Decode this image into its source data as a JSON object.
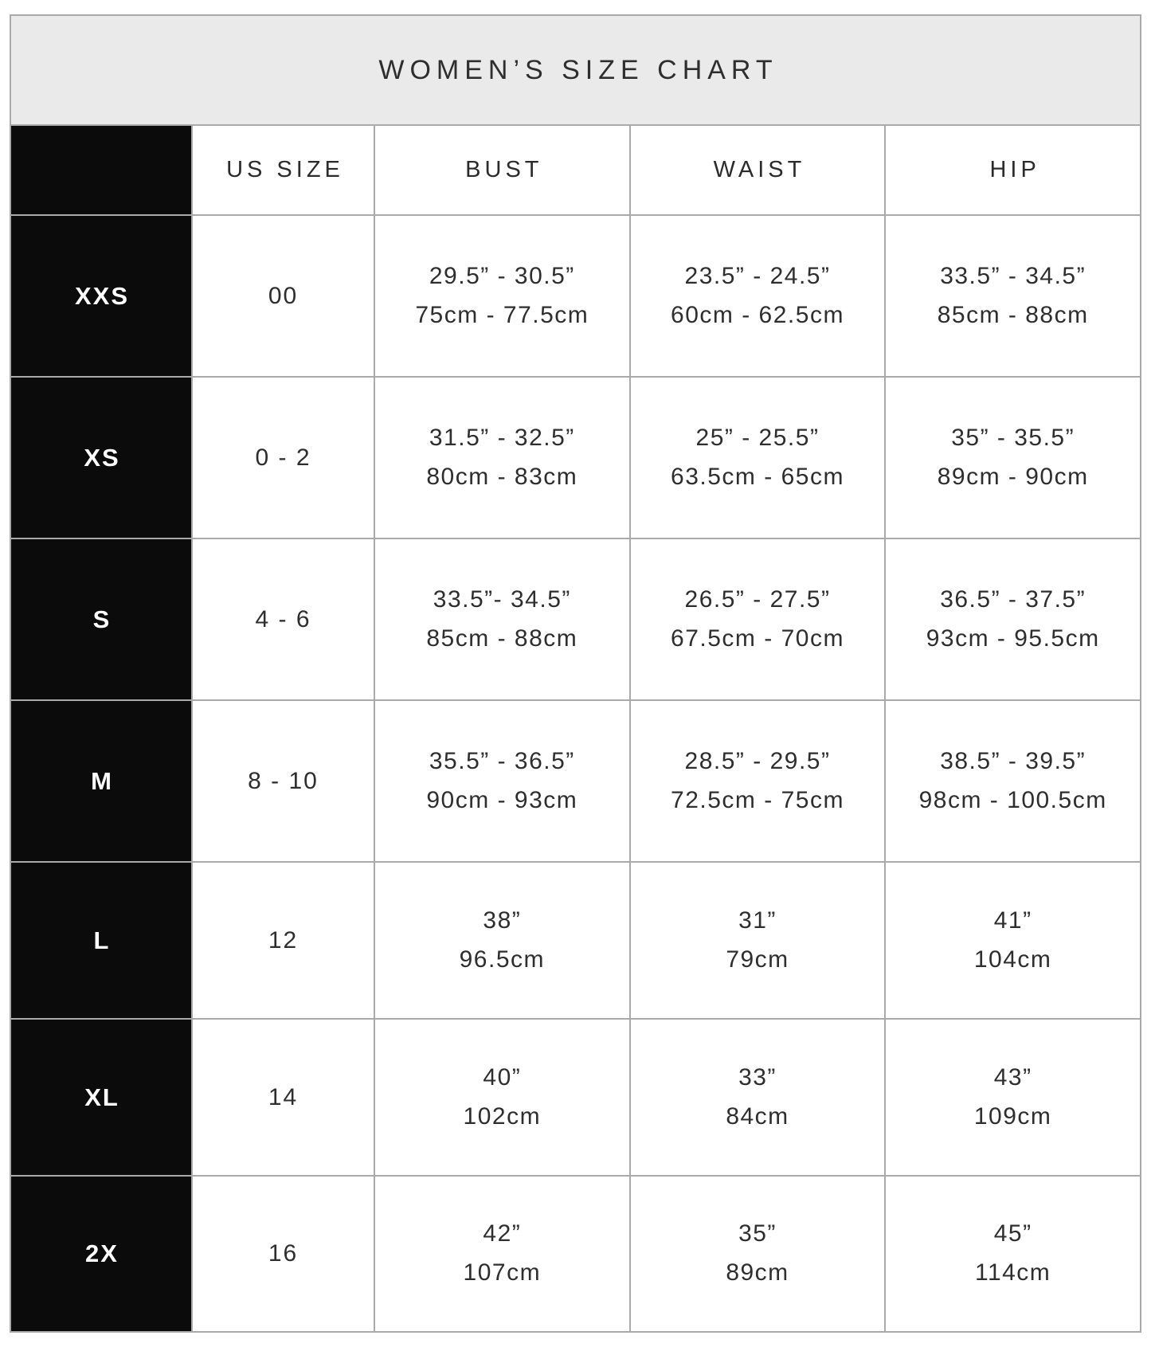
{
  "chart_data": {
    "type": "table",
    "title": "WOMEN’S SIZE CHART",
    "columns": [
      "",
      "US SIZE",
      "BUST",
      "WAIST",
      "HIP"
    ],
    "note_units": "each measurement cell shows inches on line 1 and centimeters on line 2",
    "rows": [
      {
        "label": "XXS",
        "us": "00",
        "bust_in": "29.5” - 30.5”",
        "bust_cm": "75cm - 77.5cm",
        "waist_in": "23.5” - 24.5”",
        "waist_cm": "60cm - 62.5cm",
        "hip_in": "33.5” - 34.5”",
        "hip_cm": "85cm - 88cm"
      },
      {
        "label": "XS",
        "us": "0 - 2",
        "bust_in": "31.5” - 32.5”",
        "bust_cm": "80cm - 83cm",
        "waist_in": "25” - 25.5”",
        "waist_cm": "63.5cm - 65cm",
        "hip_in": "35” - 35.5”",
        "hip_cm": "89cm - 90cm"
      },
      {
        "label": "S",
        "us": "4 - 6",
        "bust_in": "33.5”- 34.5”",
        "bust_cm": "85cm - 88cm",
        "waist_in": "26.5” - 27.5”",
        "waist_cm": "67.5cm - 70cm",
        "hip_in": "36.5” - 37.5”",
        "hip_cm": "93cm - 95.5cm"
      },
      {
        "label": "M",
        "us": "8 - 10",
        "bust_in": "35.5” - 36.5”",
        "bust_cm": "90cm - 93cm",
        "waist_in": "28.5” - 29.5”",
        "waist_cm": "72.5cm - 75cm",
        "hip_in": "38.5” - 39.5”",
        "hip_cm": "98cm - 100.5cm"
      },
      {
        "label": "L",
        "us": "12",
        "bust_in": "38”",
        "bust_cm": "96.5cm",
        "waist_in": "31”",
        "waist_cm": "79cm",
        "hip_in": "41”",
        "hip_cm": "104cm"
      },
      {
        "label": "XL",
        "us": "14",
        "bust_in": "40”",
        "bust_cm": "102cm",
        "waist_in": "33”",
        "waist_cm": "84cm",
        "hip_in": "43”",
        "hip_cm": "109cm"
      },
      {
        "label": "2X",
        "us": "16",
        "bust_in": "42”",
        "bust_cm": "107cm",
        "waist_in": "35”",
        "waist_cm": "89cm",
        "hip_in": "45”",
        "hip_cm": "114cm"
      }
    ]
  },
  "colors": {
    "title_bg": "#eaeaea",
    "label_bg": "#0b0b0b",
    "border": "#aaaaaa",
    "text": "#2e2e2e"
  }
}
